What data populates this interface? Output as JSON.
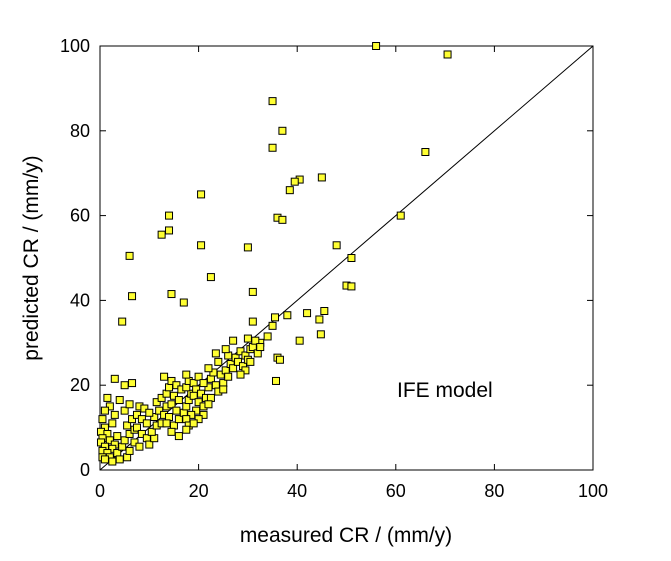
{
  "chart_data": {
    "type": "scatter",
    "xlabel": "measured CR / (mm/y)",
    "ylabel": "predicted CR / (mm/y)",
    "xlim": [
      0,
      100
    ],
    "ylim": [
      0,
      100
    ],
    "x_ticks": [
      "0",
      "20",
      "40",
      "60",
      "80",
      "100"
    ],
    "y_ticks": [
      "0",
      "20",
      "40",
      "60",
      "80",
      "100"
    ],
    "annotation": "IFE model",
    "grid": false,
    "reference_line": [
      [
        0,
        0
      ],
      [
        100,
        100
      ]
    ],
    "marker": {
      "shape": "square",
      "fill": "#ffff33",
      "stroke": "#000000"
    },
    "series": [
      {
        "points": [
          [
            56,
            100
          ],
          [
            70.5,
            98
          ],
          [
            66,
            75
          ],
          [
            61,
            60
          ],
          [
            35,
            87
          ],
          [
            37,
            80
          ],
          [
            35,
            76
          ],
          [
            45,
            69
          ],
          [
            40.5,
            68.5
          ],
          [
            39.5,
            68
          ],
          [
            38.5,
            66
          ],
          [
            20.5,
            65
          ],
          [
            14,
            60
          ],
          [
            36,
            59.5
          ],
          [
            37,
            59
          ],
          [
            14,
            56.5
          ],
          [
            12.5,
            55.5
          ],
          [
            20.5,
            53
          ],
          [
            30,
            52.5
          ],
          [
            48,
            53
          ],
          [
            6,
            50.5
          ],
          [
            51,
            50
          ],
          [
            22.5,
            45.5
          ],
          [
            50,
            43.5
          ],
          [
            51,
            43.3
          ],
          [
            14.5,
            41.5
          ],
          [
            31,
            42
          ],
          [
            6.5,
            41
          ],
          [
            17,
            39.5
          ],
          [
            42,
            37
          ],
          [
            45.5,
            37.5
          ],
          [
            38,
            36.5
          ],
          [
            35.5,
            36
          ],
          [
            44.5,
            35.5
          ],
          [
            4.5,
            35
          ],
          [
            31,
            35
          ],
          [
            35,
            34
          ],
          [
            44.8,
            32
          ],
          [
            40.5,
            30.5
          ],
          [
            34,
            31.5
          ],
          [
            32.5,
            30
          ],
          [
            30,
            31
          ],
          [
            36,
            26.5
          ],
          [
            36.5,
            26
          ],
          [
            35.7,
            21
          ],
          [
            3,
            21.5
          ],
          [
            5,
            20
          ],
          [
            6.5,
            20.5
          ],
          [
            1.5,
            17
          ],
          [
            4,
            16.5
          ],
          [
            2,
            15
          ],
          [
            1,
            14
          ],
          [
            3,
            13
          ],
          [
            0.5,
            12
          ],
          [
            2.5,
            11
          ],
          [
            1,
            10
          ],
          [
            0.2,
            9
          ],
          [
            1.5,
            8.5
          ],
          [
            0.5,
            7.5
          ],
          [
            2,
            7
          ],
          [
            0.2,
            6.5
          ],
          [
            3,
            6
          ],
          [
            1,
            5.5
          ],
          [
            2.5,
            5
          ],
          [
            0.5,
            4.5
          ],
          [
            1.5,
            4
          ],
          [
            3.5,
            4
          ],
          [
            0.5,
            3
          ],
          [
            2,
            3
          ],
          [
            1,
            2.5
          ],
          [
            4,
            2.5
          ],
          [
            2.5,
            2
          ],
          [
            5.5,
            3
          ],
          [
            6,
            4.5
          ],
          [
            4.5,
            5.5
          ],
          [
            5,
            7
          ],
          [
            3.5,
            8
          ],
          [
            6,
            8.5
          ],
          [
            7,
            9.5
          ],
          [
            5.5,
            10.5
          ],
          [
            6.5,
            12
          ],
          [
            7.5,
            13
          ],
          [
            5,
            14
          ],
          [
            6,
            15.5
          ],
          [
            8,
            15
          ],
          [
            9,
            14.5
          ],
          [
            8.5,
            12
          ],
          [
            9.5,
            11
          ],
          [
            7.5,
            10
          ],
          [
            8.5,
            8.5
          ],
          [
            9.5,
            7.5
          ],
          [
            7,
            6.5
          ],
          [
            8,
            5.5
          ],
          [
            10,
            6
          ],
          [
            11,
            7.5
          ],
          [
            10.5,
            9
          ],
          [
            11.5,
            10.5
          ],
          [
            12.5,
            11
          ],
          [
            11,
            12.5
          ],
          [
            10,
            13.5
          ],
          [
            12,
            14
          ],
          [
            13,
            13
          ],
          [
            13.5,
            15
          ],
          [
            11.5,
            16
          ],
          [
            12.5,
            17
          ],
          [
            13.5,
            18
          ],
          [
            14,
            19.5
          ],
          [
            13,
            22
          ],
          [
            14.5,
            21
          ],
          [
            15.5,
            20
          ],
          [
            16.5,
            19
          ],
          [
            15,
            17.5
          ],
          [
            16,
            16.5
          ],
          [
            14.5,
            15.5
          ],
          [
            15.5,
            14
          ],
          [
            14,
            12.5
          ],
          [
            13.5,
            11
          ],
          [
            15,
            10.5
          ],
          [
            14.5,
            9
          ],
          [
            16,
            12
          ],
          [
            17,
            13.5
          ],
          [
            17.5,
            15
          ],
          [
            18,
            16.5
          ],
          [
            18.5,
            18
          ],
          [
            17.5,
            19.5
          ],
          [
            18,
            21
          ],
          [
            17.5,
            22.5
          ],
          [
            19,
            20.5
          ],
          [
            20,
            22
          ],
          [
            19.5,
            19
          ],
          [
            20.5,
            18
          ],
          [
            19,
            17.5
          ],
          [
            20,
            16
          ],
          [
            21,
            15
          ],
          [
            19.5,
            14
          ],
          [
            18.5,
            13
          ],
          [
            17.5,
            12
          ],
          [
            18,
            10.5
          ],
          [
            21.5,
            17
          ],
          [
            22,
            19.5
          ],
          [
            21,
            20.5
          ],
          [
            22.5,
            21.5
          ],
          [
            23,
            23
          ],
          [
            22,
            24
          ],
          [
            24,
            25.5
          ],
          [
            23.5,
            27.5
          ],
          [
            24.5,
            22.5
          ],
          [
            25,
            20.5
          ],
          [
            25.5,
            23.5
          ],
          [
            26,
            22
          ],
          [
            26.5,
            25
          ],
          [
            27,
            24
          ],
          [
            27.5,
            26.5
          ],
          [
            26,
            27
          ],
          [
            25.5,
            28.5
          ],
          [
            27,
            30.5
          ],
          [
            28.5,
            28
          ],
          [
            28,
            25.5
          ],
          [
            29,
            24.5
          ],
          [
            29.5,
            27
          ],
          [
            30,
            26
          ],
          [
            30.5,
            28.5
          ],
          [
            31,
            29
          ],
          [
            31.5,
            30.5
          ],
          [
            32,
            27.5
          ],
          [
            32.5,
            29
          ],
          [
            30.5,
            25.5
          ],
          [
            29.5,
            23.5
          ],
          [
            28.5,
            22.5
          ],
          [
            23.5,
            20
          ],
          [
            24,
            18.5
          ],
          [
            22.5,
            17
          ],
          [
            21,
            13
          ],
          [
            20,
            12
          ],
          [
            16,
            8
          ],
          [
            17.5,
            9.5
          ],
          [
            19,
            11
          ],
          [
            22,
            15.5
          ],
          [
            25,
            19
          ]
        ]
      }
    ]
  }
}
